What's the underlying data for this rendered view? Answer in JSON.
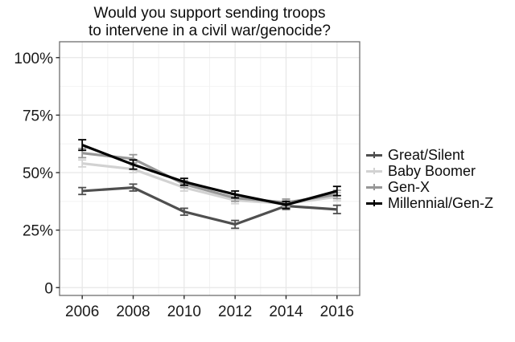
{
  "title": {
    "line1": "Would you support sending troops",
    "line2": "to intervene in a civil war/genocide?"
  },
  "colors": {
    "background": "#ffffff",
    "panel_border": "#6e6e6e",
    "grid_major": "#e6e6e6",
    "grid_minor": "#f2f2f2",
    "tick": "#2b2b2b",
    "axis_text": "#1a1a1a"
  },
  "chart_data": {
    "type": "line",
    "title": "Would you support sending troops to intervene in a civil war/genocide?",
    "title_lines": [
      "Would you support sending troops",
      "to intervene in a civil war/genocide?"
    ],
    "x": [
      2006,
      2008,
      2010,
      2012,
      2014,
      2016
    ],
    "x_major_ticks": [
      2006,
      2008,
      2010,
      2012,
      2014,
      2016
    ],
    "x_tick_labels": [
      "2006",
      "2008",
      "2010",
      "2012",
      "2014",
      "2016"
    ],
    "x_minor_ticks": [
      2007,
      2009,
      2011,
      2013,
      2015
    ],
    "y_major_ticks": [
      0,
      25,
      50,
      75,
      100
    ],
    "y_tick_labels": [
      "0",
      "25%",
      "50%",
      "75%",
      "100%"
    ],
    "y_minor_ticks": [
      12.5,
      37.5,
      62.5,
      87.5
    ],
    "xlim": [
      2005.11,
      2016.89
    ],
    "ylim": [
      -3.4,
      106.9
    ],
    "xlabel": "",
    "ylabel": "",
    "grid": true,
    "error_bars": true,
    "legend_position": "right",
    "series": [
      {
        "name": "Great/Silent",
        "color": "#4f4f4f",
        "values": [
          42,
          43.5,
          33,
          27.5,
          35.5,
          34
        ],
        "moe": [
          1.5,
          1.5,
          1.5,
          1.7,
          1.5,
          1.8
        ]
      },
      {
        "name": "Baby Boomer",
        "color": "#d2d2d2",
        "values": [
          54,
          51.5,
          43.5,
          38,
          36.5,
          39.5
        ],
        "moe": [
          1.5,
          1.5,
          1.5,
          1.5,
          1.5,
          1.8
        ]
      },
      {
        "name": "Gen-X",
        "color": "#979797",
        "values": [
          58.5,
          56,
          45,
          39,
          37,
          40.5
        ],
        "moe": [
          2,
          1.8,
          1.5,
          1.5,
          1.5,
          1.8
        ]
      },
      {
        "name": "Millennial/Gen-Z",
        "color": "#000000",
        "values": [
          62,
          53.5,
          46,
          40.5,
          36,
          42
        ],
        "moe": [
          2.3,
          2,
          1.5,
          1.5,
          1.5,
          2
        ]
      }
    ]
  }
}
